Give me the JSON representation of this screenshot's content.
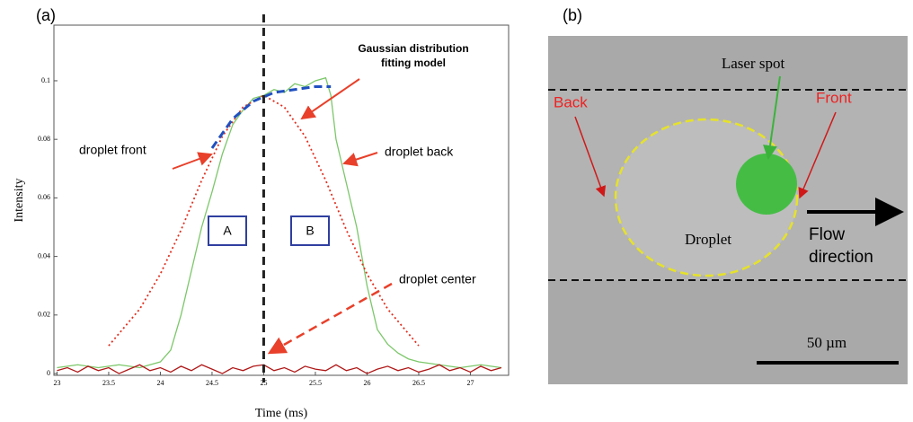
{
  "panel_labels": [
    "(a)",
    "(b)"
  ],
  "chart_data": {
    "type": "line",
    "x_label": "Time (ms)",
    "y_label": "Intensity",
    "xlim": [
      22.97,
      27.37
    ],
    "ylim": [
      -0.0006,
      0.119
    ],
    "xticks": [
      23,
      23.5,
      24,
      24.5,
      25,
      25.5,
      26,
      26.5,
      27
    ],
    "yticks": [
      0,
      0.02,
      0.04,
      0.06,
      0.08,
      0.1
    ],
    "center_line": 25,
    "annotations": [
      "Gaussian distribution",
      "fitting model",
      "droplet front",
      "droplet back",
      "droplet center",
      "A",
      "B"
    ],
    "series": [
      {
        "color": "#7cc76a",
        "style": "solid",
        "x": [
          23.0,
          23.2,
          23.4,
          23.6,
          23.8,
          24.0,
          24.1,
          24.2,
          24.3,
          24.4,
          24.5,
          24.6,
          24.7,
          24.8,
          24.9,
          25.0,
          25.1,
          25.2,
          25.3,
          25.4,
          25.5,
          25.6,
          25.65,
          25.7,
          25.8,
          25.9,
          26.0,
          26.1,
          26.2,
          26.3,
          26.4,
          26.5,
          26.7,
          26.9,
          27.1,
          27.3
        ],
        "values": [
          0.002,
          0.003,
          0.002,
          0.003,
          0.002,
          0.004,
          0.008,
          0.02,
          0.035,
          0.05,
          0.062,
          0.075,
          0.085,
          0.09,
          0.094,
          0.095,
          0.097,
          0.096,
          0.099,
          0.098,
          0.1,
          0.101,
          0.095,
          0.08,
          0.065,
          0.05,
          0.03,
          0.015,
          0.01,
          0.007,
          0.005,
          0.004,
          0.003,
          0.002,
          0.003,
          0.002
        ]
      },
      {
        "color": "#b01818",
        "style": "solid",
        "x": [
          23.0,
          23.1,
          23.2,
          23.3,
          23.4,
          23.5,
          23.6,
          23.7,
          23.8,
          23.9,
          24.0,
          24.1,
          24.2,
          24.3,
          24.4,
          24.5,
          24.6,
          24.7,
          24.8,
          24.9,
          25.0,
          25.1,
          25.2,
          25.3,
          25.4,
          25.5,
          25.6,
          25.7,
          25.8,
          25.9,
          26.0,
          26.1,
          26.2,
          26.3,
          26.4,
          26.5,
          26.6,
          26.7,
          26.8,
          26.9,
          27.0,
          27.1,
          27.2,
          27.3
        ],
        "values": [
          0.001,
          0.002,
          0.0005,
          0.0025,
          0.001,
          0.002,
          0.0,
          0.0015,
          0.003,
          0.001,
          0.002,
          0.0005,
          0.0025,
          0.001,
          0.003,
          0.0015,
          0.0,
          0.002,
          0.001,
          0.0025,
          0.003,
          0.001,
          0.002,
          0.0005,
          0.0025,
          0.0015,
          0.001,
          0.003,
          0.001,
          0.002,
          0.0,
          0.0015,
          0.0025,
          0.001,
          0.002,
          0.0005,
          0.0015,
          0.003,
          0.001,
          0.002,
          0.0005,
          0.0025,
          0.001,
          0.002
        ]
      },
      {
        "color": "#e03020",
        "style": "dotted",
        "x": [
          23.5,
          23.8,
          24.0,
          24.2,
          24.4,
          24.6,
          24.8,
          25.0,
          25.2,
          25.4,
          25.6,
          25.8,
          26.0,
          26.2,
          26.5
        ],
        "values": [
          0.0095,
          0.022,
          0.034,
          0.049,
          0.066,
          0.081,
          0.091,
          0.095,
          0.091,
          0.081,
          0.066,
          0.049,
          0.034,
          0.022,
          0.0095
        ]
      },
      {
        "color": "#2050c0",
        "style": "dashed",
        "x": [
          24.5,
          24.7,
          24.9,
          25.1,
          25.3,
          25.5,
          25.65
        ],
        "values": [
          0.077,
          0.087,
          0.093,
          0.096,
          0.097,
          0.098,
          0.098
        ]
      }
    ]
  },
  "panel_b": {
    "laser_spot": "Laser spot",
    "back": "Back",
    "front": "Front",
    "droplet": "Droplet",
    "flow": [
      "Flow",
      "direction"
    ],
    "scale_bar": "50 µm"
  }
}
